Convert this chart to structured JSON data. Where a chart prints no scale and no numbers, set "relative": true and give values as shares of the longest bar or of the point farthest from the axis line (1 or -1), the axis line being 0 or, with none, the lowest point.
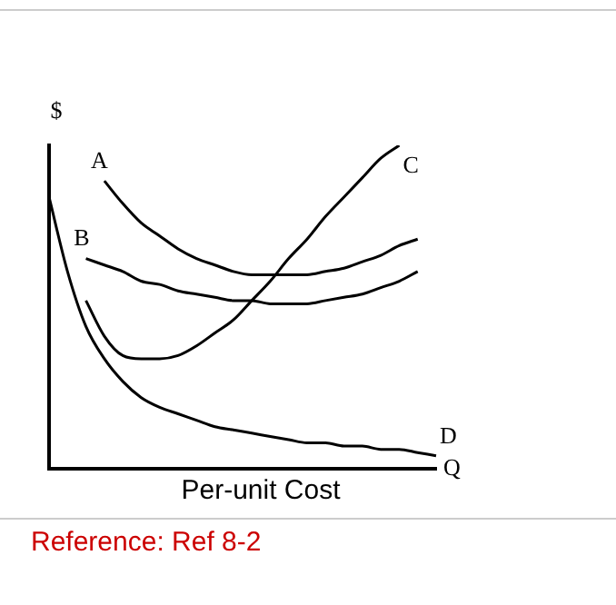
{
  "chart_data": {
    "type": "line",
    "title": "Per-unit Cost",
    "xlabel": "Q",
    "ylabel": "$",
    "relative": true,
    "legend": false,
    "grid": false,
    "marker": "none",
    "line_style": "solid",
    "categories": [
      null,
      null,
      null,
      null,
      null,
      null,
      null,
      null,
      null,
      null,
      null,
      null,
      null,
      null,
      null,
      null,
      null,
      null,
      null,
      null,
      null,
      null
    ],
    "series": [
      {
        "name": "A",
        "color": "#000000",
        "values": [
          null,
          null,
          null,
          0.89,
          0.82,
          0.76,
          0.72,
          0.68,
          0.65,
          0.63,
          0.61,
          0.6,
          0.6,
          0.6,
          0.6,
          0.61,
          0.62,
          0.64,
          0.66,
          0.69,
          0.71,
          null
        ]
      },
      {
        "name": "B",
        "color": "#000000",
        "values": [
          null,
          null,
          0.65,
          0.63,
          0.61,
          0.58,
          0.57,
          0.55,
          0.54,
          0.53,
          0.52,
          0.52,
          0.51,
          0.51,
          0.51,
          0.52,
          0.53,
          0.54,
          0.56,
          0.58,
          0.61,
          null
        ]
      },
      {
        "name": "C",
        "color": "#000000",
        "values": [
          null,
          null,
          0.52,
          0.41,
          0.35,
          0.34,
          0.34,
          0.35,
          0.38,
          0.42,
          0.46,
          0.52,
          0.58,
          0.65,
          0.71,
          0.78,
          0.84,
          0.9,
          0.96,
          1,
          null,
          null
        ]
      },
      {
        "name": "D",
        "color": "#000000",
        "values": [
          0.84,
          0.61,
          0.44,
          0.34,
          0.27,
          0.22,
          0.19,
          0.17,
          0.15,
          0.13,
          0.12,
          0.11,
          0.1,
          0.09,
          0.08,
          0.08,
          0.07,
          0.07,
          0.06,
          0.06,
          0.05,
          0.04
        ]
      }
    ],
    "annotations": [
      "Reference: Ref 8-2"
    ]
  }
}
